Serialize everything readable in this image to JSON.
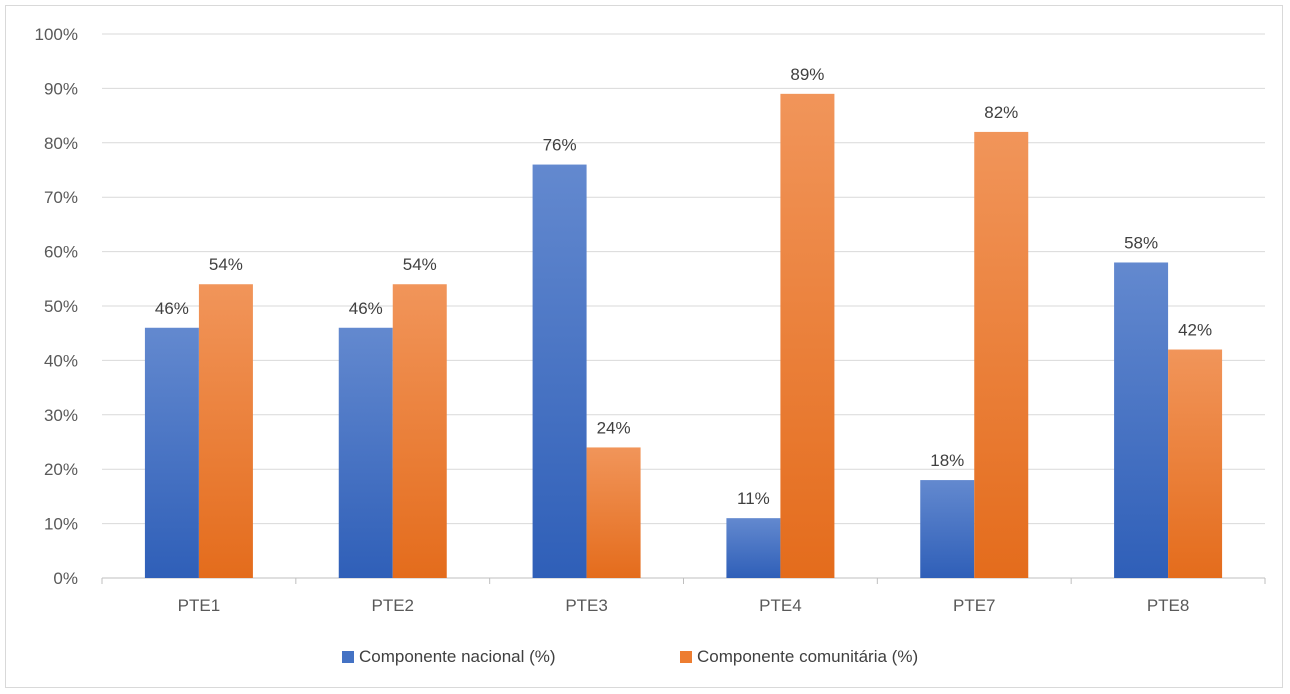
{
  "chart_data": {
    "type": "bar",
    "categories": [
      "PTE1",
      "PTE2",
      "PTE3",
      "PTE4",
      "PTE7",
      "PTE8"
    ],
    "series": [
      {
        "name": "Componente nacional (%)",
        "values": [
          46,
          46,
          76,
          11,
          18,
          58
        ],
        "labels": [
          "46%",
          "46%",
          "76%",
          "11%",
          "18%",
          "58%"
        ],
        "color": "#4472C4"
      },
      {
        "name": "Componente comunitária (%)",
        "values": [
          54,
          54,
          24,
          89,
          82,
          42
        ],
        "labels": [
          "54%",
          "54%",
          "24%",
          "89%",
          "82%",
          "42%"
        ],
        "color": "#ED7D31"
      }
    ],
    "ylim": [
      0,
      100
    ],
    "yticks": [
      "0%",
      "10%",
      "20%",
      "30%",
      "40%",
      "50%",
      "60%",
      "70%",
      "80%",
      "90%",
      "100%"
    ],
    "grid": true,
    "legend_position": "bottom"
  }
}
